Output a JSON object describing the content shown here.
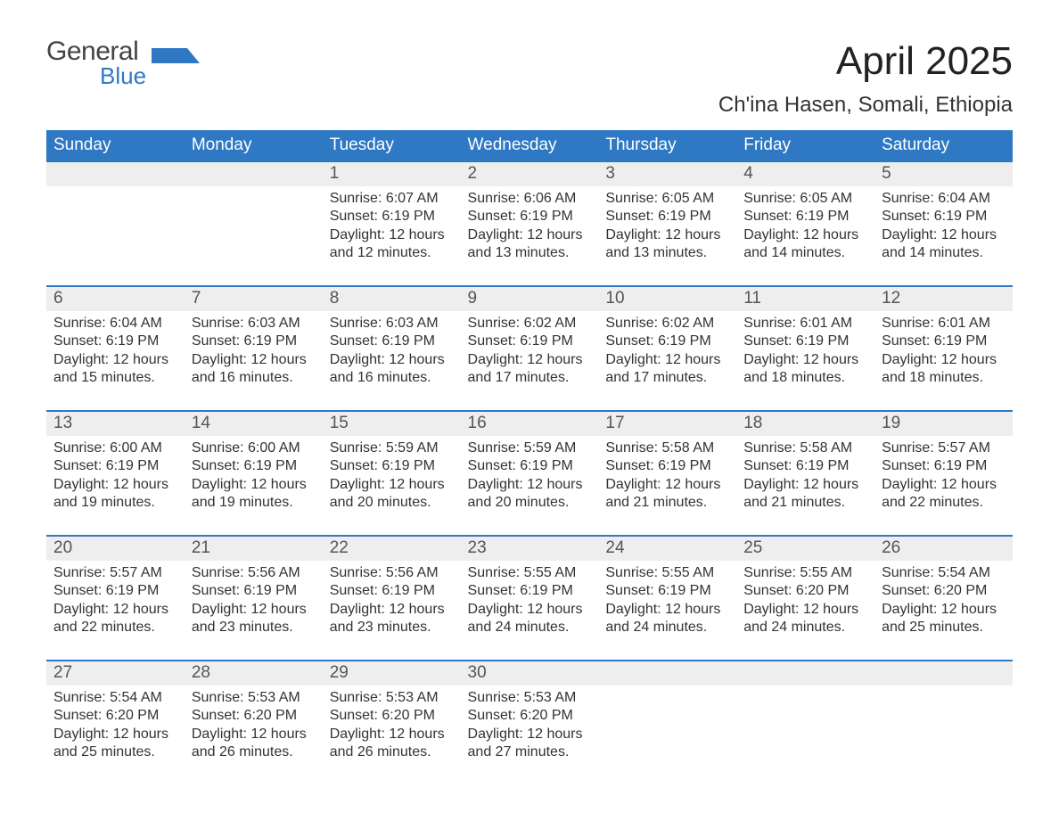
{
  "brand": {
    "name_part1": "General",
    "name_part2": "Blue",
    "text_color": "#444444",
    "accent_color": "#2f78c4"
  },
  "title": {
    "month_year": "April 2025",
    "location": "Ch'ina Hasen, Somali, Ethiopia",
    "title_fontsize": 44,
    "location_fontsize": 24
  },
  "calendar": {
    "type": "month-calendar",
    "header_bg": "#2f78c4",
    "header_text_color": "#ffffff",
    "row_accent_border": "#2f78c4",
    "daynum_bg": "#eeeeee",
    "daynum_text_color": "#555555",
    "cell_text_color": "#333333",
    "body_fontsize": 16,
    "header_fontsize": 19,
    "day_headers": [
      "Sunday",
      "Monday",
      "Tuesday",
      "Wednesday",
      "Thursday",
      "Friday",
      "Saturday"
    ],
    "weeks": [
      [
        null,
        null,
        {
          "day": "1",
          "sunrise": "Sunrise: 6:07 AM",
          "sunset": "Sunset: 6:19 PM",
          "daylight1": "Daylight: 12 hours",
          "daylight2": "and 12 minutes."
        },
        {
          "day": "2",
          "sunrise": "Sunrise: 6:06 AM",
          "sunset": "Sunset: 6:19 PM",
          "daylight1": "Daylight: 12 hours",
          "daylight2": "and 13 minutes."
        },
        {
          "day": "3",
          "sunrise": "Sunrise: 6:05 AM",
          "sunset": "Sunset: 6:19 PM",
          "daylight1": "Daylight: 12 hours",
          "daylight2": "and 13 minutes."
        },
        {
          "day": "4",
          "sunrise": "Sunrise: 6:05 AM",
          "sunset": "Sunset: 6:19 PM",
          "daylight1": "Daylight: 12 hours",
          "daylight2": "and 14 minutes."
        },
        {
          "day": "5",
          "sunrise": "Sunrise: 6:04 AM",
          "sunset": "Sunset: 6:19 PM",
          "daylight1": "Daylight: 12 hours",
          "daylight2": "and 14 minutes."
        }
      ],
      [
        {
          "day": "6",
          "sunrise": "Sunrise: 6:04 AM",
          "sunset": "Sunset: 6:19 PM",
          "daylight1": "Daylight: 12 hours",
          "daylight2": "and 15 minutes."
        },
        {
          "day": "7",
          "sunrise": "Sunrise: 6:03 AM",
          "sunset": "Sunset: 6:19 PM",
          "daylight1": "Daylight: 12 hours",
          "daylight2": "and 16 minutes."
        },
        {
          "day": "8",
          "sunrise": "Sunrise: 6:03 AM",
          "sunset": "Sunset: 6:19 PM",
          "daylight1": "Daylight: 12 hours",
          "daylight2": "and 16 minutes."
        },
        {
          "day": "9",
          "sunrise": "Sunrise: 6:02 AM",
          "sunset": "Sunset: 6:19 PM",
          "daylight1": "Daylight: 12 hours",
          "daylight2": "and 17 minutes."
        },
        {
          "day": "10",
          "sunrise": "Sunrise: 6:02 AM",
          "sunset": "Sunset: 6:19 PM",
          "daylight1": "Daylight: 12 hours",
          "daylight2": "and 17 minutes."
        },
        {
          "day": "11",
          "sunrise": "Sunrise: 6:01 AM",
          "sunset": "Sunset: 6:19 PM",
          "daylight1": "Daylight: 12 hours",
          "daylight2": "and 18 minutes."
        },
        {
          "day": "12",
          "sunrise": "Sunrise: 6:01 AM",
          "sunset": "Sunset: 6:19 PM",
          "daylight1": "Daylight: 12 hours",
          "daylight2": "and 18 minutes."
        }
      ],
      [
        {
          "day": "13",
          "sunrise": "Sunrise: 6:00 AM",
          "sunset": "Sunset: 6:19 PM",
          "daylight1": "Daylight: 12 hours",
          "daylight2": "and 19 minutes."
        },
        {
          "day": "14",
          "sunrise": "Sunrise: 6:00 AM",
          "sunset": "Sunset: 6:19 PM",
          "daylight1": "Daylight: 12 hours",
          "daylight2": "and 19 minutes."
        },
        {
          "day": "15",
          "sunrise": "Sunrise: 5:59 AM",
          "sunset": "Sunset: 6:19 PM",
          "daylight1": "Daylight: 12 hours",
          "daylight2": "and 20 minutes."
        },
        {
          "day": "16",
          "sunrise": "Sunrise: 5:59 AM",
          "sunset": "Sunset: 6:19 PM",
          "daylight1": "Daylight: 12 hours",
          "daylight2": "and 20 minutes."
        },
        {
          "day": "17",
          "sunrise": "Sunrise: 5:58 AM",
          "sunset": "Sunset: 6:19 PM",
          "daylight1": "Daylight: 12 hours",
          "daylight2": "and 21 minutes."
        },
        {
          "day": "18",
          "sunrise": "Sunrise: 5:58 AM",
          "sunset": "Sunset: 6:19 PM",
          "daylight1": "Daylight: 12 hours",
          "daylight2": "and 21 minutes."
        },
        {
          "day": "19",
          "sunrise": "Sunrise: 5:57 AM",
          "sunset": "Sunset: 6:19 PM",
          "daylight1": "Daylight: 12 hours",
          "daylight2": "and 22 minutes."
        }
      ],
      [
        {
          "day": "20",
          "sunrise": "Sunrise: 5:57 AM",
          "sunset": "Sunset: 6:19 PM",
          "daylight1": "Daylight: 12 hours",
          "daylight2": "and 22 minutes."
        },
        {
          "day": "21",
          "sunrise": "Sunrise: 5:56 AM",
          "sunset": "Sunset: 6:19 PM",
          "daylight1": "Daylight: 12 hours",
          "daylight2": "and 23 minutes."
        },
        {
          "day": "22",
          "sunrise": "Sunrise: 5:56 AM",
          "sunset": "Sunset: 6:19 PM",
          "daylight1": "Daylight: 12 hours",
          "daylight2": "and 23 minutes."
        },
        {
          "day": "23",
          "sunrise": "Sunrise: 5:55 AM",
          "sunset": "Sunset: 6:19 PM",
          "daylight1": "Daylight: 12 hours",
          "daylight2": "and 24 minutes."
        },
        {
          "day": "24",
          "sunrise": "Sunrise: 5:55 AM",
          "sunset": "Sunset: 6:19 PM",
          "daylight1": "Daylight: 12 hours",
          "daylight2": "and 24 minutes."
        },
        {
          "day": "25",
          "sunrise": "Sunrise: 5:55 AM",
          "sunset": "Sunset: 6:20 PM",
          "daylight1": "Daylight: 12 hours",
          "daylight2": "and 24 minutes."
        },
        {
          "day": "26",
          "sunrise": "Sunrise: 5:54 AM",
          "sunset": "Sunset: 6:20 PM",
          "daylight1": "Daylight: 12 hours",
          "daylight2": "and 25 minutes."
        }
      ],
      [
        {
          "day": "27",
          "sunrise": "Sunrise: 5:54 AM",
          "sunset": "Sunset: 6:20 PM",
          "daylight1": "Daylight: 12 hours",
          "daylight2": "and 25 minutes."
        },
        {
          "day": "28",
          "sunrise": "Sunrise: 5:53 AM",
          "sunset": "Sunset: 6:20 PM",
          "daylight1": "Daylight: 12 hours",
          "daylight2": "and 26 minutes."
        },
        {
          "day": "29",
          "sunrise": "Sunrise: 5:53 AM",
          "sunset": "Sunset: 6:20 PM",
          "daylight1": "Daylight: 12 hours",
          "daylight2": "and 26 minutes."
        },
        {
          "day": "30",
          "sunrise": "Sunrise: 5:53 AM",
          "sunset": "Sunset: 6:20 PM",
          "daylight1": "Daylight: 12 hours",
          "daylight2": "and 27 minutes."
        },
        null,
        null,
        null
      ]
    ]
  }
}
